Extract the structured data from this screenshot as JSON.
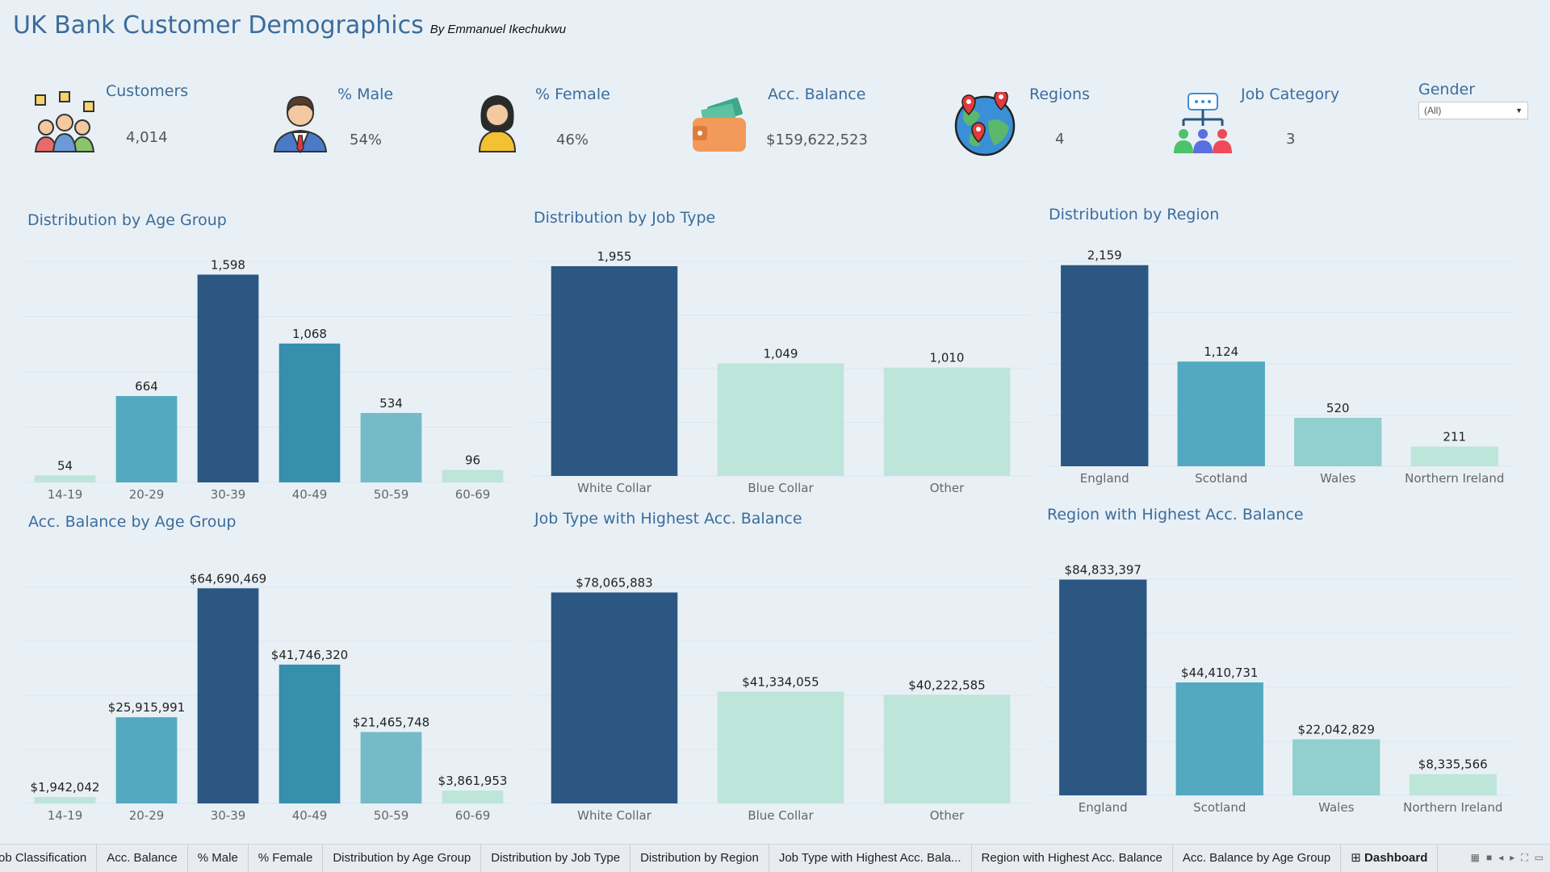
{
  "header": {
    "title": "UK Bank Customer Demographics",
    "byline": "By Emmanuel Ikechukwu"
  },
  "kpis": [
    {
      "label": "Customers",
      "value": "4,014",
      "icon": "customers-icon"
    },
    {
      "label": "% Male",
      "value": "54%",
      "icon": "male-icon"
    },
    {
      "label": "% Female",
      "value": "46%",
      "icon": "female-icon"
    },
    {
      "label": "Acc. Balance",
      "value": "$159,622,523",
      "icon": "wallet-icon"
    },
    {
      "label": "Regions",
      "value": "4",
      "icon": "globe-icon"
    },
    {
      "label": "Job Category",
      "value": "3",
      "icon": "org-chart-icon"
    }
  ],
  "filter": {
    "label": "Gender",
    "value": "(All)"
  },
  "colors": {
    "navy": "#2c5783",
    "teal": "#52a9c0",
    "teal_dark": "#378fae",
    "teal_light": "#74bac7",
    "mint": "#aedfd8",
    "mint_light": "#bde5da",
    "aqua": "#92cfcf"
  },
  "chart_data": [
    {
      "type": "bar",
      "title": "Distribution by Age Group",
      "categories": [
        "14-19",
        "20-29",
        "30-39",
        "40-49",
        "50-59",
        "60-69"
      ],
      "values": [
        54,
        664,
        1598,
        1068,
        534,
        96
      ],
      "labels": [
        "54",
        "664",
        "1,598",
        "1,068",
        "534",
        "96"
      ],
      "colors": [
        "#bde5da",
        "#52a9c0",
        "#2c5783",
        "#378fae",
        "#74bac7",
        "#bde5da"
      ],
      "ylim": [
        0,
        1700
      ]
    },
    {
      "type": "bar",
      "title": "Distribution by Job Type",
      "categories": [
        "White Collar",
        "Blue Collar",
        "Other"
      ],
      "values": [
        1955,
        1049,
        1010
      ],
      "labels": [
        "1,955",
        "1,049",
        "1,010"
      ],
      "colors": [
        "#2c5783",
        "#bde5da",
        "#bde5da"
      ],
      "ylim": [
        0,
        2000
      ]
    },
    {
      "type": "bar",
      "title": "Distribution by Region",
      "categories": [
        "England",
        "Scotland",
        "Wales",
        "Northern Ireland"
      ],
      "values": [
        2159,
        1124,
        520,
        211
      ],
      "labels": [
        "2,159",
        "1,124",
        "520",
        "211"
      ],
      "colors": [
        "#2c5783",
        "#52a9c0",
        "#92cfcf",
        "#bde5da"
      ],
      "ylim": [
        0,
        2200
      ]
    },
    {
      "type": "bar",
      "title": "Acc. Balance by Age Group",
      "categories": [
        "14-19",
        "20-29",
        "30-39",
        "40-49",
        "50-59",
        "60-69"
      ],
      "values": [
        1942042,
        25915991,
        64690469,
        41746320,
        21465748,
        3861953
      ],
      "labels": [
        "$1,942,042",
        "$25,915,991",
        "$64,690,469",
        "$41,746,320",
        "$21,465,748",
        "$3,861,953"
      ],
      "colors": [
        "#bde5da",
        "#52a9c0",
        "#2c5783",
        "#378fae",
        "#74bac7",
        "#bde5da"
      ],
      "ylim": [
        0,
        65000000
      ]
    },
    {
      "type": "bar",
      "title": "Job Type with Highest Acc. Balance",
      "categories": [
        "White Collar",
        "Blue Collar",
        "Other"
      ],
      "values": [
        78065883,
        41334055,
        40222585
      ],
      "labels": [
        "$78,065,883",
        "$41,334,055",
        "$40,222,585"
      ],
      "colors": [
        "#2c5783",
        "#bde5da",
        "#bde5da"
      ],
      "ylim": [
        0,
        80000000
      ]
    },
    {
      "type": "bar",
      "title": "Region with Highest Acc. Balance",
      "categories": [
        "England",
        "Scotland",
        "Wales",
        "Northern Ireland"
      ],
      "values": [
        84833397,
        44410731,
        22042829,
        8335566
      ],
      "labels": [
        "$84,833,397",
        "$44,410,731",
        "$22,042,829",
        "$8,335,566"
      ],
      "colors": [
        "#2c5783",
        "#52a9c0",
        "#92cfcf",
        "#bde5da"
      ],
      "ylim": [
        0,
        85000000
      ]
    }
  ],
  "tabs": [
    "ob Classification",
    "Acc. Balance",
    "% Male",
    "% Female",
    "Distribution by Age Group",
    "Distribution by Job Type",
    "Distribution by Region",
    "Job Type with Highest Acc. Bala...",
    "Region with Highest Acc. Balance",
    "Acc. Balance by Age Group",
    "Dashboard"
  ]
}
